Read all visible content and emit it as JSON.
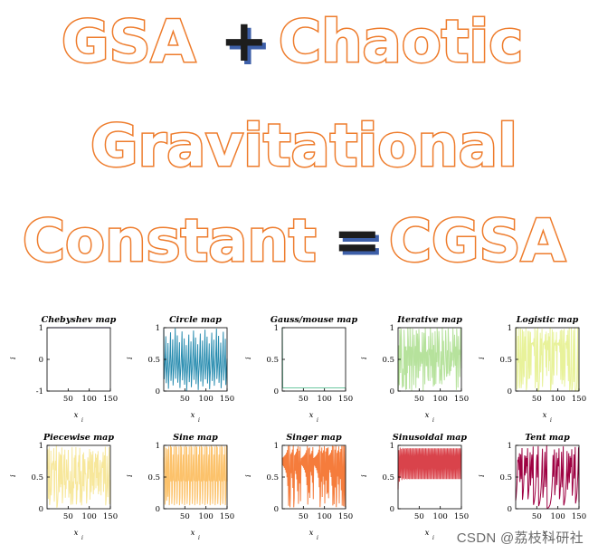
{
  "title": {
    "line1": [
      "GSA",
      "+",
      "Chaotic"
    ],
    "line2": "Gravitational",
    "line3": [
      "Constant",
      "=",
      "CGSA"
    ]
  },
  "colors": {
    "title_outline": "#ee7c2c",
    "title_fill": "#ffffff",
    "operator": "#1d1d1d",
    "operator_shadow": "#3d5fa8"
  },
  "x_axis": {
    "label": "x",
    "subscript": "i",
    "ticks": [
      "50",
      "100",
      "150"
    ]
  },
  "y_axis": {
    "label": "i"
  },
  "chart_data": [
    {
      "type": "line",
      "title": "Chebyshev map",
      "color": "#5b4a9e",
      "ylim": [
        -1,
        1
      ],
      "yticks": [
        "1",
        "0",
        "-1"
      ],
      "xlim": [
        0,
        150
      ]
    },
    {
      "type": "line",
      "title": "Circle map",
      "color": "#2a8db0",
      "ylim": [
        0,
        1
      ],
      "yticks": [
        "1",
        "0.5",
        "0"
      ],
      "xlim": [
        0,
        150
      ]
    },
    {
      "type": "line",
      "title": "Gauss/mouse map",
      "color": "#6cc7a0",
      "ylim": [
        0,
        1
      ],
      "yticks": [
        "1",
        "0.5",
        "0"
      ],
      "xlim": [
        0,
        150
      ]
    },
    {
      "type": "line",
      "title": "Iterative map",
      "color": "#b6e29c",
      "ylim": [
        0,
        1
      ],
      "yticks": [
        "1",
        "0.5",
        "0"
      ],
      "xlim": [
        0,
        150
      ]
    },
    {
      "type": "line",
      "title": "Logistic map",
      "color": "#e8f29a",
      "ylim": [
        0,
        1
      ],
      "yticks": [
        "1",
        "0.5",
        "0"
      ],
      "xlim": [
        0,
        150
      ]
    },
    {
      "type": "line",
      "title": "Piecewise map",
      "color": "#f7e79b",
      "ylim": [
        0,
        1
      ],
      "yticks": [
        "1",
        "0.5",
        "0"
      ],
      "xlim": [
        0,
        150
      ]
    },
    {
      "type": "line",
      "title": "Sine map",
      "color": "#fcc26b",
      "ylim": [
        0,
        1
      ],
      "yticks": [
        "1",
        "0.5",
        "0"
      ],
      "xlim": [
        0,
        150
      ]
    },
    {
      "type": "line",
      "title": "Singer map",
      "color": "#f57c3c",
      "ylim": [
        0,
        1
      ],
      "yticks": [
        "1",
        "0.5",
        "0"
      ],
      "xlim": [
        0,
        150
      ]
    },
    {
      "type": "line",
      "title": "Sinusoidal map",
      "color": "#d9434b",
      "ylim": [
        0,
        1
      ],
      "yticks": [
        "1",
        "0.5",
        "0"
      ],
      "xlim": [
        0,
        150
      ]
    },
    {
      "type": "line",
      "title": "Tent map",
      "color": "#9e0142",
      "ylim": [
        0,
        1
      ],
      "yticks": [
        "1",
        "0.5",
        "0"
      ],
      "xlim": [
        0,
        150
      ]
    }
  ],
  "watermark": "CSDN @荔枝科研社"
}
